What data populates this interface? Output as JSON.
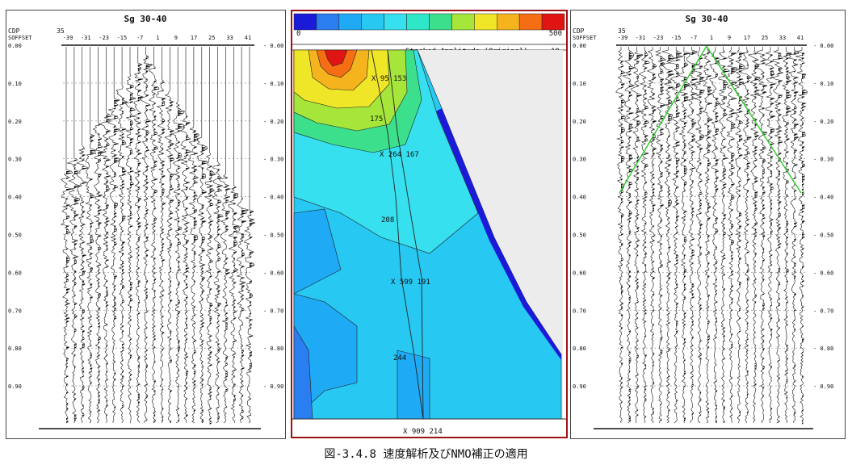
{
  "left_panel": {
    "title": "Sg  30-40",
    "cdp_label": "CDP",
    "cdp_value": "35",
    "offset_label": "SOFFSET",
    "offset_ticks": [
      "-39",
      "-31",
      "-23",
      "-15",
      "-7",
      "1",
      "9",
      "17",
      "25",
      "33",
      "41"
    ],
    "time_ticks": [
      "0.00",
      "0.10",
      "0.20",
      "0.30",
      "0.40",
      "0.50",
      "0.60",
      "0.70",
      "0.80",
      "0.90"
    ]
  },
  "middle_panel": {
    "colorbar_min": "0",
    "colorbar_max": "500",
    "colorbar_colors": [
      "#1a1ad8",
      "#2a7ef0",
      "#1faaf5",
      "#27c8f2",
      "#36e0ee",
      "#2ee6c8",
      "#3ce08c",
      "#a6e63a",
      "#f0e628",
      "#f5b41e",
      "#f56e14",
      "#e11414"
    ],
    "header_text": "Stacked Amplitude (Original)",
    "header_value": "10",
    "annotations": [
      "X 95 153",
      "175",
      "X 264 167",
      "208",
      "X 599 191",
      "244",
      "X 909 214"
    ]
  },
  "right_panel": {
    "title": "Sg  30-40",
    "cdp_label": "CDP",
    "cdp_value": "35",
    "offset_label": "SOFFSET",
    "offset_ticks": [
      "-39",
      "-31",
      "-23",
      "-15",
      "-7",
      "1",
      "9",
      "17",
      "25",
      "33",
      "41"
    ],
    "time_ticks": [
      "0.00",
      "0.10",
      "0.20",
      "0.30",
      "0.40",
      "0.50",
      "0.60",
      "0.70",
      "0.80",
      "0.90"
    ],
    "moveout_line_color": "#33cc33"
  },
  "caption": "図-3.4.8 速度解析及びNMO補正の適用"
}
